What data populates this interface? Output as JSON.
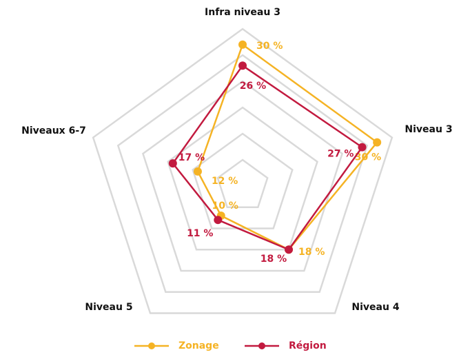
{
  "chart_data": {
    "type": "radar",
    "categories": [
      "Infra niveau 3",
      "Niveau 3",
      "Niveau 4",
      "Niveau 5",
      "Niveaux 6-7"
    ],
    "series": [
      {
        "name": "Zonage",
        "color": "#f5b324",
        "values": [
          30,
          30,
          18,
          10,
          12
        ],
        "value_labels": [
          "30 %",
          "30 %",
          "18 %",
          "10 %",
          "12 %"
        ]
      },
      {
        "name": "Région",
        "color": "#c21a3f",
        "values": [
          26,
          27,
          18,
          11,
          17
        ],
        "value_labels": [
          "26 %",
          "27 %",
          "18 %",
          "11 %",
          "17 %"
        ]
      }
    ],
    "ylim": [
      3,
      33
    ],
    "yticks": [
      8,
      13,
      18,
      23,
      28,
      33
    ],
    "grid": true,
    "legend": "bottom"
  }
}
